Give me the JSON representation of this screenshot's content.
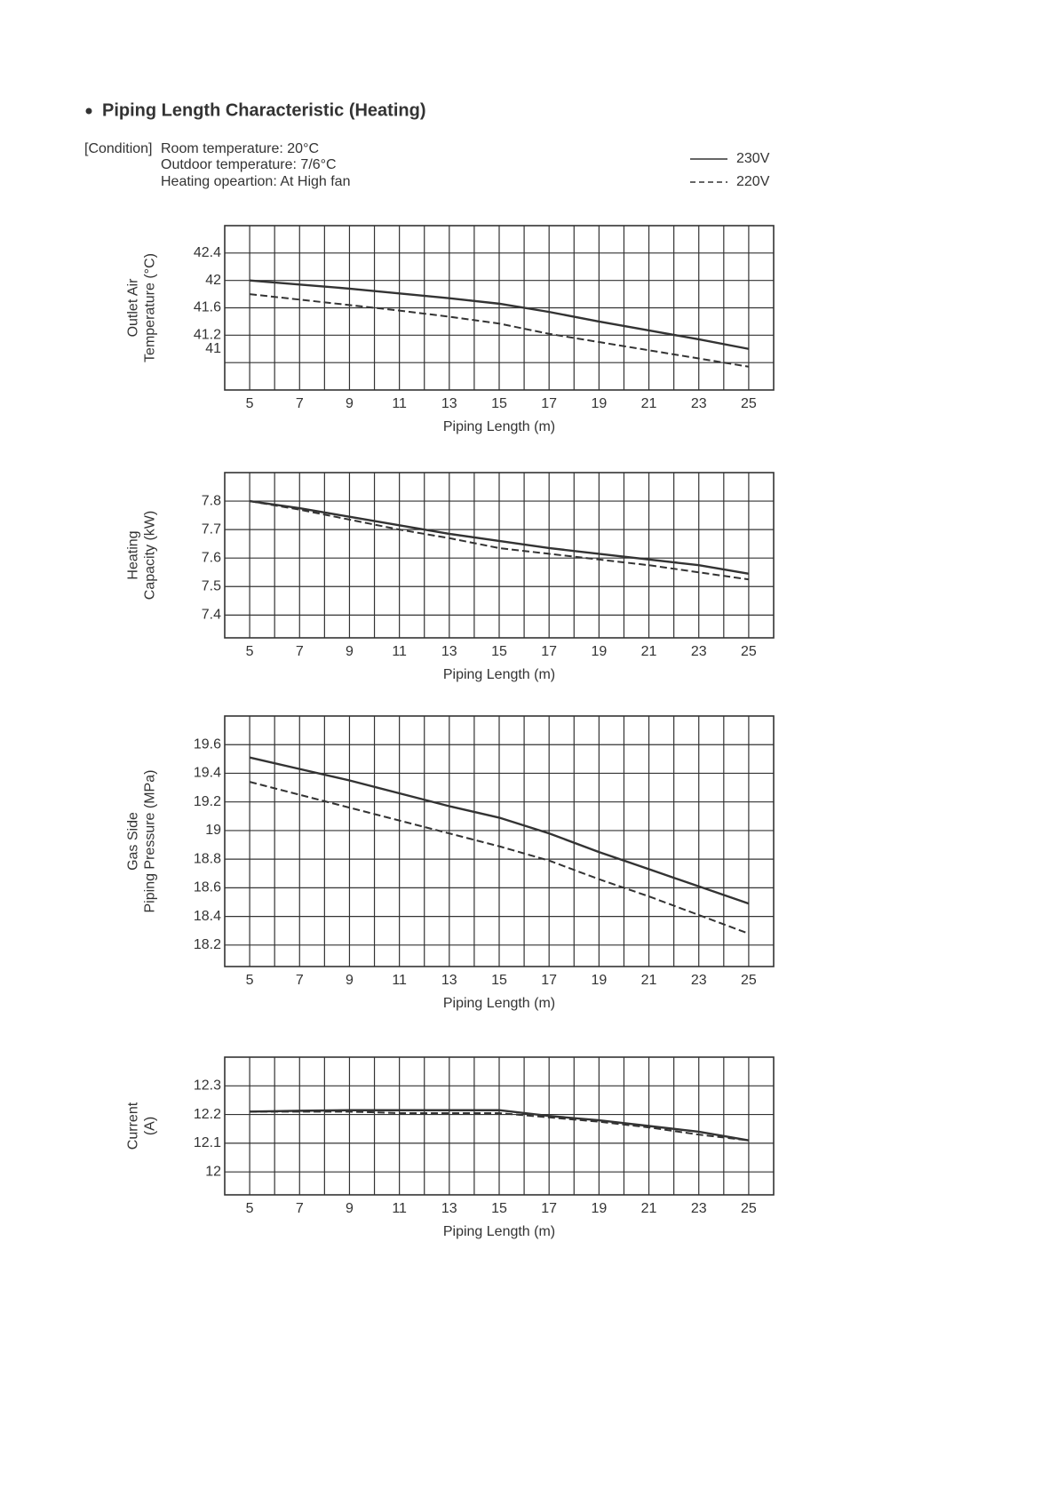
{
  "title": "Piping Length Characteristic (Heating)",
  "condition": {
    "label": "[Condition]",
    "lines": [
      "Room temperature: 20°C",
      "Outdoor temperature: 7/6°C",
      "Heating opeartion: At High fan"
    ]
  },
  "legend": [
    {
      "name": "230V",
      "dash": false
    },
    {
      "name": "220V",
      "dash": true
    }
  ],
  "chart_data": [
    {
      "type": "line",
      "ylabel": [
        "Outlet Air",
        "Temperature (°C)"
      ],
      "xlabel": "Piping Length (m)",
      "x": [
        5,
        7,
        9,
        11,
        13,
        15,
        17,
        19,
        21,
        23,
        25
      ],
      "series": [
        {
          "dash": false,
          "color": "#333333",
          "values": [
            42.0,
            41.94,
            41.88,
            41.81,
            41.74,
            41.66,
            41.54,
            41.4,
            41.27,
            41.14,
            41.0
          ]
        },
        {
          "dash": true,
          "color": "#333333",
          "values": [
            41.8,
            41.72,
            41.64,
            41.56,
            41.47,
            41.37,
            41.22,
            41.1,
            40.98,
            40.86,
            40.74
          ]
        }
      ],
      "xlim": [
        4,
        26
      ],
      "xticks": [
        5,
        7,
        9,
        11,
        13,
        15,
        17,
        19,
        21,
        23,
        25
      ],
      "xgrid": [
        5,
        6,
        7,
        8,
        9,
        10,
        11,
        12,
        13,
        14,
        15,
        16,
        17,
        18,
        19,
        20,
        21,
        22,
        23,
        24,
        25
      ],
      "ylim": [
        40.4,
        42.8
      ],
      "yticks": [
        42.4,
        42.0,
        41.6,
        41.2,
        41.0
      ],
      "ygrid": [
        42.4,
        42.0,
        41.6,
        41.2,
        40.8
      ]
    },
    {
      "type": "line",
      "ylabel": [
        "Heating",
        "Capacity (kW)"
      ],
      "xlabel": "Piping Length (m)",
      "x": [
        5,
        7,
        9,
        11,
        13,
        15,
        17,
        19,
        21,
        23,
        25
      ],
      "series": [
        {
          "dash": false,
          "color": "#333333",
          "values": [
            7.8,
            7.775,
            7.745,
            7.715,
            7.685,
            7.66,
            7.635,
            7.615,
            7.595,
            7.575,
            7.545
          ]
        },
        {
          "dash": true,
          "color": "#333333",
          "values": [
            7.8,
            7.77,
            7.735,
            7.7,
            7.67,
            7.635,
            7.615,
            7.595,
            7.575,
            7.55,
            7.525
          ]
        }
      ],
      "xlim": [
        4,
        26
      ],
      "xticks": [
        5,
        7,
        9,
        11,
        13,
        15,
        17,
        19,
        21,
        23,
        25
      ],
      "xgrid": [
        5,
        6,
        7,
        8,
        9,
        10,
        11,
        12,
        13,
        14,
        15,
        16,
        17,
        18,
        19,
        20,
        21,
        22,
        23,
        24,
        25
      ],
      "ylim": [
        7.32,
        7.9
      ],
      "yticks": [
        7.8,
        7.7,
        7.6,
        7.5,
        7.4
      ]
    },
    {
      "type": "line",
      "ylabel": [
        "Gas Side",
        "Piping Pressure (MPa)"
      ],
      "xlabel": "Piping Length (m)",
      "x": [
        5,
        7,
        9,
        11,
        13,
        15,
        17,
        19,
        21,
        23,
        25
      ],
      "series": [
        {
          "dash": false,
          "color": "#333333",
          "values": [
            19.51,
            19.43,
            19.35,
            19.26,
            19.17,
            19.09,
            18.98,
            18.85,
            18.73,
            18.61,
            18.49
          ]
        },
        {
          "dash": true,
          "color": "#333333",
          "values": [
            19.34,
            19.25,
            19.16,
            19.07,
            18.98,
            18.89,
            18.79,
            18.66,
            18.54,
            18.41,
            18.28
          ]
        }
      ],
      "xlim": [
        4,
        26
      ],
      "xticks": [
        5,
        7,
        9,
        11,
        13,
        15,
        17,
        19,
        21,
        23,
        25
      ],
      "xgrid": [
        5,
        6,
        7,
        8,
        9,
        10,
        11,
        12,
        13,
        14,
        15,
        16,
        17,
        18,
        19,
        20,
        21,
        22,
        23,
        24,
        25
      ],
      "ylim": [
        18.05,
        19.8
      ],
      "yticks": [
        19.6,
        19.4,
        19.2,
        19.0,
        18.8,
        18.6,
        18.4,
        18.2
      ]
    },
    {
      "type": "line",
      "ylabel": [
        "Current",
        "(A)"
      ],
      "xlabel": "Piping Length (m)",
      "x": [
        5,
        7,
        9,
        11,
        13,
        15,
        17,
        19,
        21,
        23,
        25
      ],
      "series": [
        {
          "dash": false,
          "color": "#333333",
          "values": [
            12.21,
            12.213,
            12.215,
            12.215,
            12.215,
            12.215,
            12.195,
            12.18,
            12.16,
            12.14,
            12.11
          ]
        },
        {
          "dash": true,
          "color": "#333333",
          "values": [
            12.21,
            12.21,
            12.21,
            12.205,
            12.205,
            12.205,
            12.19,
            12.175,
            12.155,
            12.13,
            12.11
          ]
        }
      ],
      "xlim": [
        4,
        26
      ],
      "xticks": [
        5,
        7,
        9,
        11,
        13,
        15,
        17,
        19,
        21,
        23,
        25
      ],
      "xgrid": [
        5,
        6,
        7,
        8,
        9,
        10,
        11,
        12,
        13,
        14,
        15,
        16,
        17,
        18,
        19,
        20,
        21,
        22,
        23,
        24,
        25
      ],
      "ylim": [
        11.92,
        12.4
      ],
      "yticks": [
        12.3,
        12.2,
        12.1,
        12.0
      ]
    }
  ]
}
